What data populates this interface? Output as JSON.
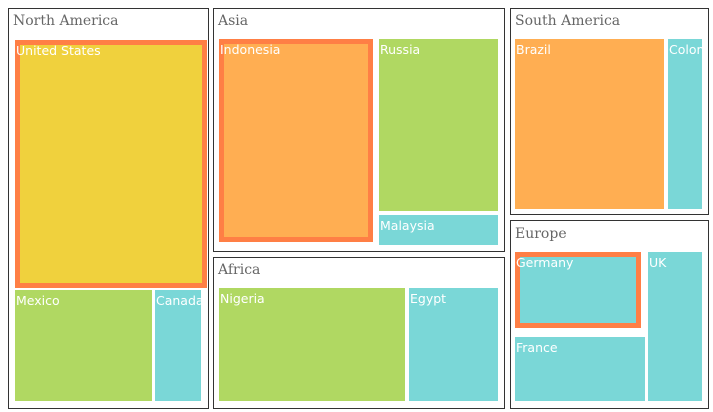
{
  "chart_data": {
    "type": "treemap",
    "groups": [
      {
        "name": "North America",
        "items": [
          {
            "name": "United States",
            "color": "#F0D13D",
            "selected": true
          },
          {
            "name": "Mexico",
            "color": "#B0D862"
          },
          {
            "name": "Canada",
            "color": "#7AD7D7"
          }
        ]
      },
      {
        "name": "Asia",
        "items": [
          {
            "name": "Indonesia",
            "color": "#FFAE52",
            "selected": true
          },
          {
            "name": "Russia",
            "color": "#B0D862"
          },
          {
            "name": "Malaysia",
            "color": "#7AD7D7"
          }
        ]
      },
      {
        "name": "Africa",
        "items": [
          {
            "name": "Nigeria",
            "color": "#B0D862"
          },
          {
            "name": "Egypt",
            "color": "#7AD7D7"
          }
        ]
      },
      {
        "name": "South America",
        "items": [
          {
            "name": "Brazil",
            "color": "#FFAE52"
          },
          {
            "name": "Colombia",
            "color": "#7AD7D7"
          }
        ]
      },
      {
        "name": "Europe",
        "items": [
          {
            "name": "Germany",
            "color": "#7AD7D7",
            "selected": true
          },
          {
            "name": "UK",
            "color": "#7AD7D7"
          },
          {
            "name": "France",
            "color": "#7AD7D7"
          }
        ]
      }
    ],
    "selection_color": "#FF7F45"
  }
}
